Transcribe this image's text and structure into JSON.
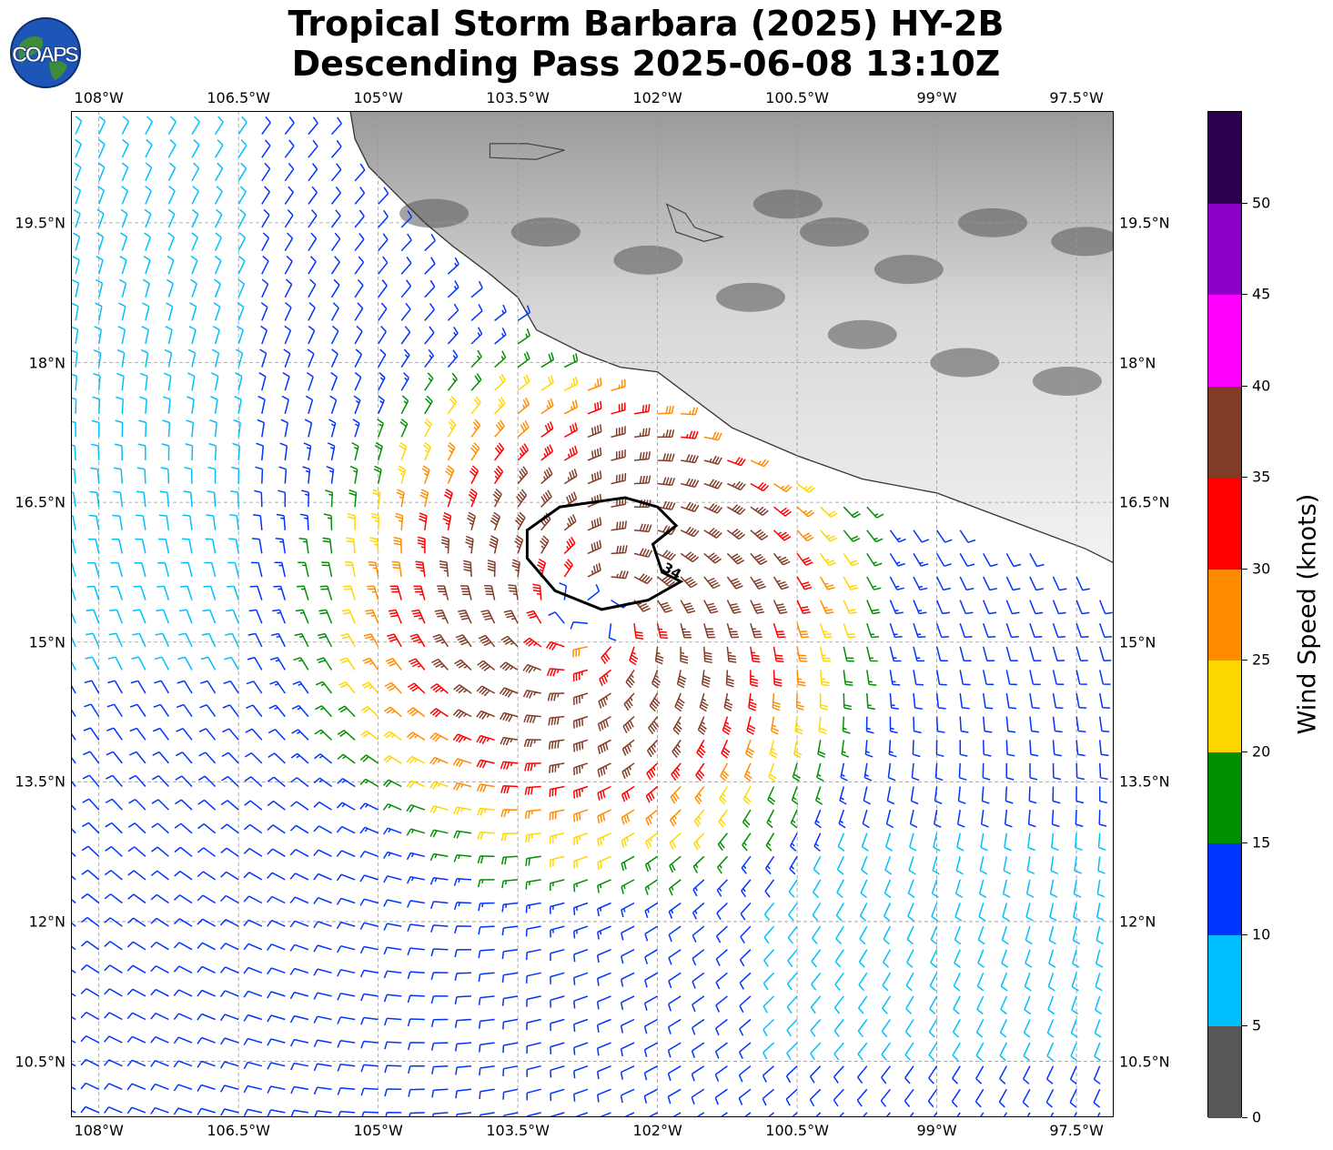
{
  "header": {
    "line1": "Tropical Storm Barbara (2025) HY-2B",
    "line2": "Descending Pass 2025-06-08 13:10Z"
  },
  "logo": {
    "text": "COAPS"
  },
  "map": {
    "lon_range": [
      -108.3,
      -97.1
    ],
    "lat_range": [
      9.9,
      20.7
    ],
    "lon_labels": [
      "108°W",
      "106.5°W",
      "105°W",
      "103.5°W",
      "102°W",
      "100.5°W",
      "99°W",
      "97.5°W"
    ],
    "lon_values": [
      -108,
      -106.5,
      -105,
      -103.5,
      -102,
      -100.5,
      -99,
      -97.5
    ],
    "lat_labels": [
      "19.5°N",
      "18°N",
      "16.5°N",
      "15°N",
      "13.5°N",
      "12°N",
      "10.5°N"
    ],
    "lat_values": [
      19.5,
      18,
      16.5,
      15,
      13.5,
      12,
      10.5
    ],
    "storm_center": {
      "lon": -102.7,
      "lat": 15.3
    },
    "contour_label": "34",
    "coastline": [
      [
        -105.3,
        20.7
      ],
      [
        -105.25,
        20.4
      ],
      [
        -105.1,
        20.1
      ],
      [
        -104.8,
        19.8
      ],
      [
        -104.5,
        19.5
      ],
      [
        -104.2,
        19.25
      ],
      [
        -103.8,
        18.95
      ],
      [
        -103.5,
        18.7
      ],
      [
        -103.3,
        18.35
      ],
      [
        -102.8,
        18.1
      ],
      [
        -102.4,
        17.95
      ],
      [
        -102.0,
        17.9
      ],
      [
        -101.6,
        17.6
      ],
      [
        -101.2,
        17.3
      ],
      [
        -100.5,
        17.0
      ],
      [
        -99.8,
        16.75
      ],
      [
        -99.0,
        16.6
      ],
      [
        -98.2,
        16.3
      ],
      [
        -97.4,
        16.0
      ],
      [
        -97.1,
        15.85
      ]
    ],
    "lakes": [
      [
        [
          -103.8,
          20.35
        ],
        [
          -103.4,
          20.35
        ],
        [
          -103.0,
          20.28
        ],
        [
          -103.3,
          20.18
        ],
        [
          -103.8,
          20.2
        ]
      ],
      [
        [
          -101.9,
          19.7
        ],
        [
          -101.7,
          19.6
        ],
        [
          -101.6,
          19.45
        ],
        [
          -101.3,
          19.35
        ],
        [
          -101.5,
          19.3
        ],
        [
          -101.8,
          19.4
        ]
      ]
    ]
  },
  "colorbar": {
    "title": "Wind Speed (knots)",
    "ticks": [
      "0",
      "5",
      "10",
      "15",
      "20",
      "25",
      "30",
      "35",
      "40",
      "45",
      "50"
    ],
    "max": 55,
    "colors": [
      "#575757",
      "#00bfff",
      "#0033ff",
      "#008f00",
      "#ffd700",
      "#ff8c00",
      "#ff0000",
      "#823c28",
      "#ff00ff",
      "#8a00c8",
      "#2a004f"
    ]
  }
}
